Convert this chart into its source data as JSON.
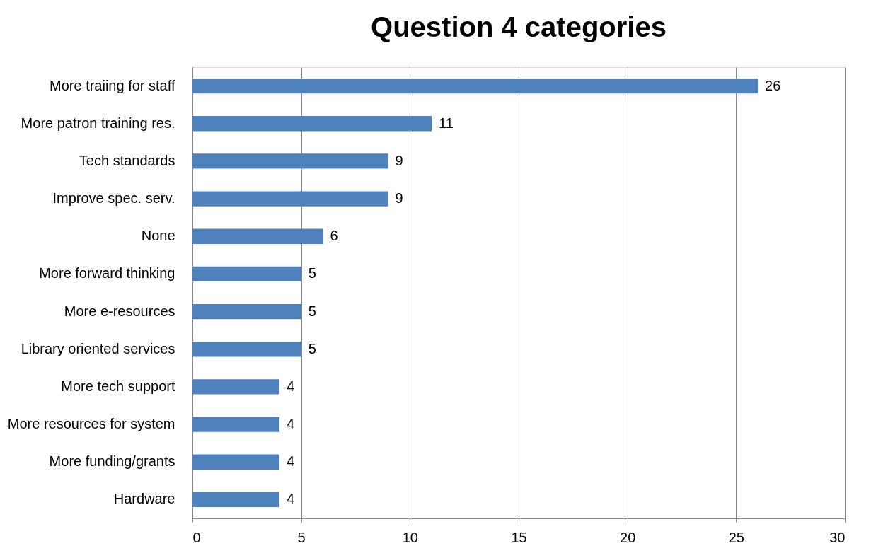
{
  "chart_data": {
    "type": "bar",
    "orientation": "horizontal",
    "title": "Question 4 categories",
    "categories": [
      "More traiing for staff",
      "More patron training res.",
      "Tech standards",
      "Improve spec. serv.",
      "None",
      "More forward thinking",
      "More e-resources",
      "Library oriented services",
      "More tech support",
      "More resources for system",
      "More funding/grants",
      "Hardware"
    ],
    "values": [
      26,
      11,
      9,
      9,
      6,
      5,
      5,
      5,
      4,
      4,
      4,
      4
    ],
    "color": "#4f81bd",
    "xlim": [
      0,
      30
    ],
    "xticks": [
      0,
      5,
      10,
      15,
      20,
      25,
      30
    ],
    "grid": "x",
    "data_labels": true
  }
}
